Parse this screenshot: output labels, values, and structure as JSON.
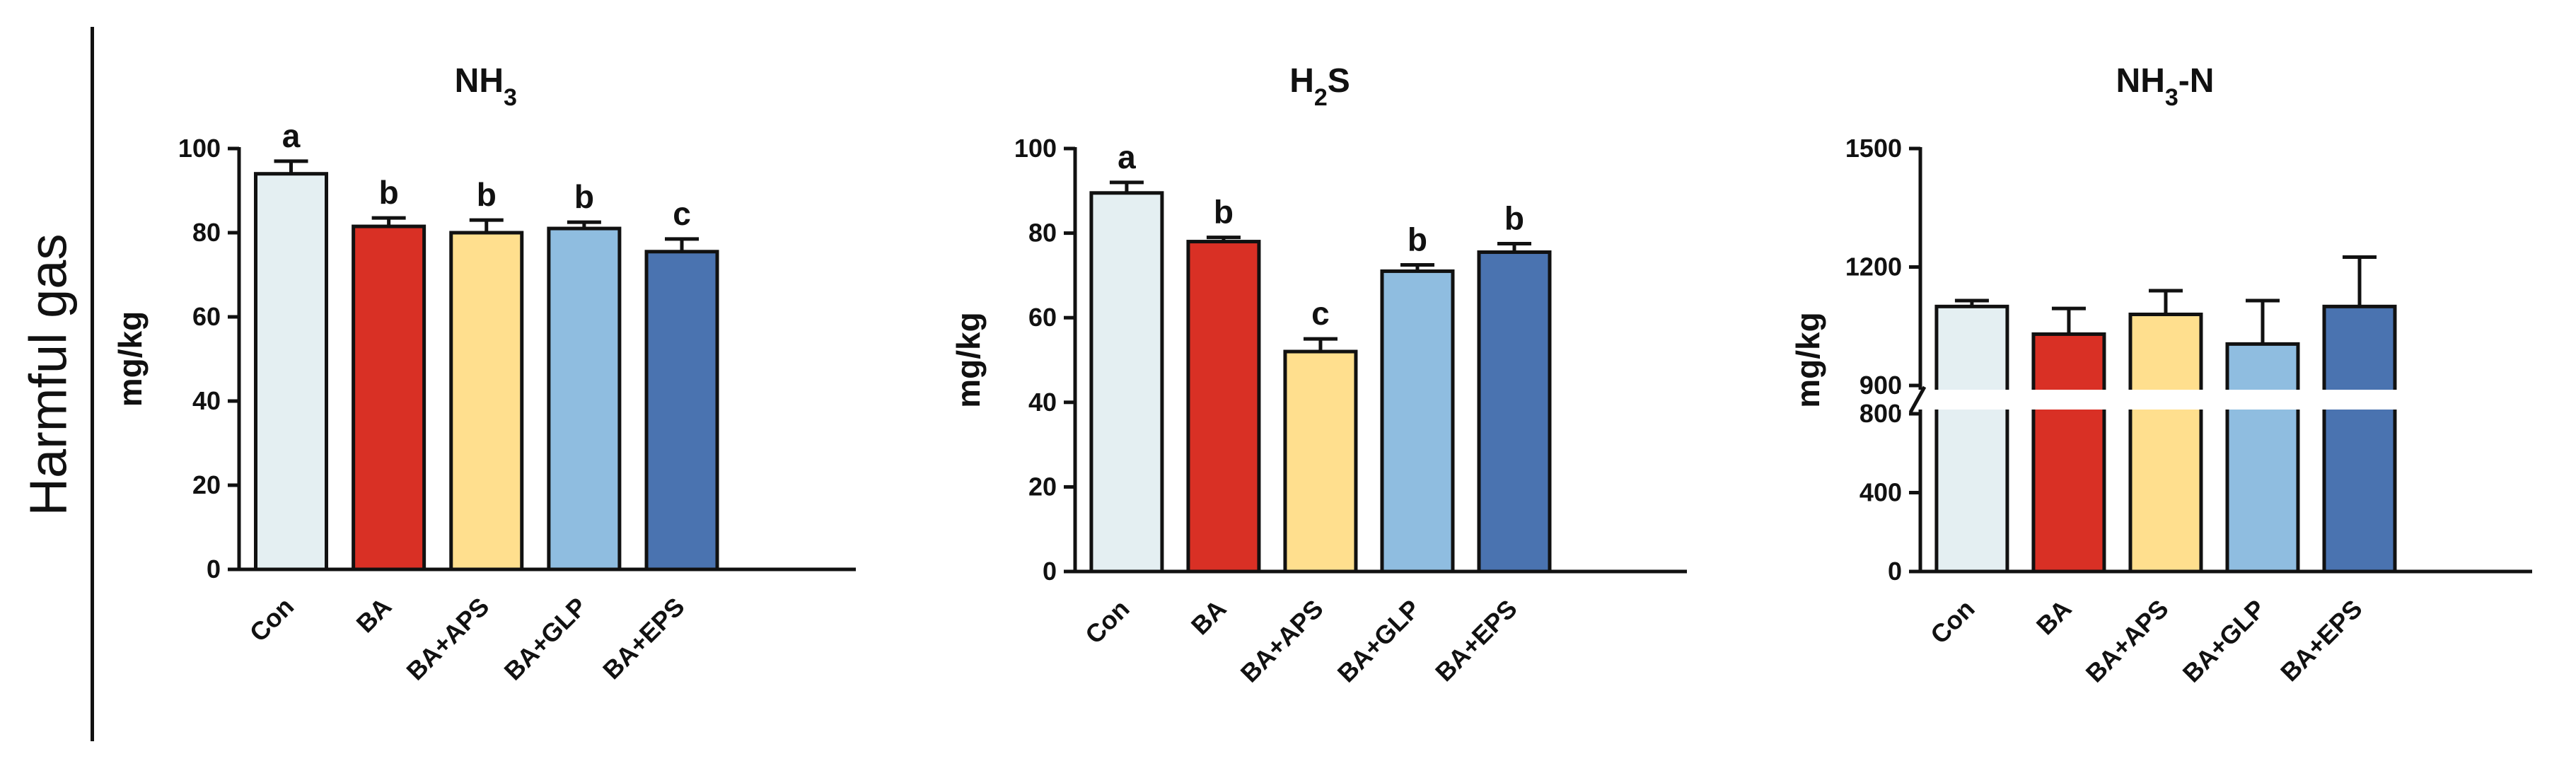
{
  "panel_label": "Harmful gas",
  "colors": {
    "Con": "#e4eff2",
    "BA": "#d93025",
    "BA+APS": "#ffdf8e",
    "BA+GLP": "#8fbde0",
    "BA+EPS": "#4a73b0",
    "axis": "#111111",
    "axis_break": "#ffffff"
  },
  "chart_data": [
    {
      "type": "bar",
      "title": "NH3",
      "title_base": "NH",
      "title_sub": "3",
      "title_suffix": "",
      "ylabel": "mg/kg",
      "categories": [
        "Con",
        "BA",
        "BA+APS",
        "BA+GLP",
        "BA+EPS"
      ],
      "values": [
        94,
        81.5,
        80,
        81,
        75.5
      ],
      "errors": [
        3,
        2,
        3,
        1.5,
        3
      ],
      "significance": [
        "a",
        "b",
        "b",
        "b",
        "c"
      ],
      "ylim": [
        0,
        100
      ],
      "yticks": [
        0,
        20,
        40,
        60,
        80,
        100
      ],
      "grid": false,
      "legend": "none"
    },
    {
      "type": "bar",
      "title": "H2S",
      "title_base": "H",
      "title_sub": "2",
      "title_suffix": "S",
      "ylabel": "mg/kg",
      "categories": [
        "Con",
        "BA",
        "BA+APS",
        "BA+GLP",
        "BA+EPS"
      ],
      "values": [
        89.5,
        78,
        52,
        71,
        75.5
      ],
      "errors": [
        2.5,
        1,
        3,
        1.5,
        2
      ],
      "significance": [
        "a",
        "b",
        "c",
        "b",
        "b"
      ],
      "ylim": [
        0,
        100
      ],
      "yticks": [
        0,
        20,
        40,
        60,
        80,
        100
      ],
      "grid": false,
      "legend": "none"
    },
    {
      "type": "bar",
      "title": "NH3-N",
      "title_base": "NH",
      "title_sub": "3",
      "title_suffix": "-N",
      "ylabel": "mg/kg",
      "categories": [
        "Con",
        "BA",
        "BA+APS",
        "BA+GLP",
        "BA+EPS"
      ],
      "values": [
        1100,
        1030,
        1080,
        1005,
        1100
      ],
      "errors": [
        15,
        65,
        60,
        110,
        125
      ],
      "significance": [
        "",
        "",
        "",
        "",
        ""
      ],
      "ylim": [
        0,
        1500
      ],
      "axis_break": [
        800,
        900
      ],
      "yticks": [
        0,
        400,
        800,
        900,
        1200,
        1500
      ],
      "grid": false,
      "legend": "none"
    }
  ]
}
